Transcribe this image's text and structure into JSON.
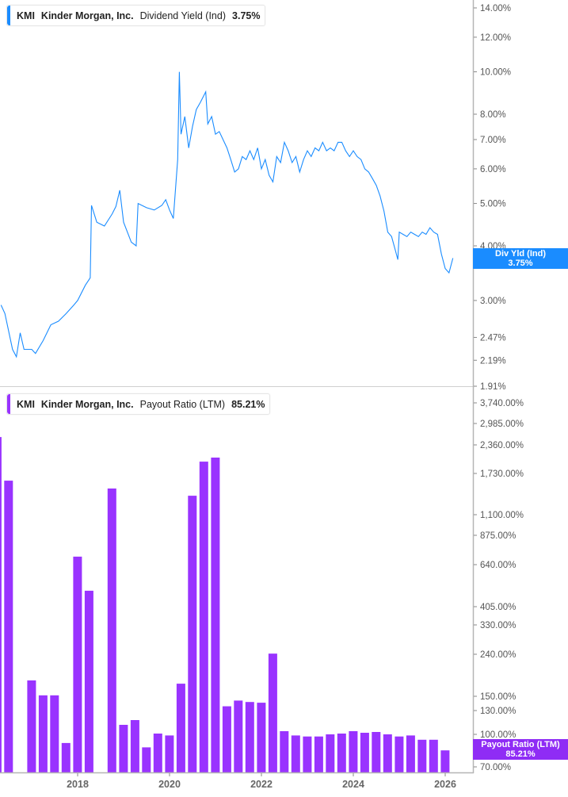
{
  "top_legend": {
    "ticker": "KMI",
    "company": "Kinder Morgan, Inc.",
    "metric": "Dividend Yield (Ind)",
    "value": "3.75%"
  },
  "bottom_legend": {
    "ticker": "KMI",
    "company": "Kinder Morgan, Inc.",
    "metric": "Payout Ratio (LTM)",
    "value": "85.21%"
  },
  "top_callout": {
    "label": "Div Yld (Ind)",
    "value": "3.75%"
  },
  "bottom_callout": {
    "label": "Payout Ratio (LTM)",
    "value": "85.21%"
  },
  "colors": {
    "yield_line": "#1a8cff",
    "payout_bars": "#9933ff",
    "payout_callout": "#8f2cf5"
  },
  "chart_data": [
    {
      "type": "line",
      "series": [
        {
          "name": "Dividend Yield (Ind)",
          "points": [
            [
              "2016-05",
              2.93
            ],
            [
              "2016-06",
              2.8
            ],
            [
              "2016-08",
              2.32
            ],
            [
              "2016-09",
              2.23
            ],
            [
              "2016-10",
              2.53
            ],
            [
              "2016-11",
              2.32
            ],
            [
              "2017-01",
              2.32
            ],
            [
              "2017-02",
              2.27
            ],
            [
              "2017-04",
              2.43
            ],
            [
              "2017-06",
              2.64
            ],
            [
              "2017-08",
              2.69
            ],
            [
              "2017-10",
              2.8
            ],
            [
              "2017-12",
              2.93
            ],
            [
              "2018-01",
              3.0
            ],
            [
              "2018-03",
              3.25
            ],
            [
              "2018-04-10",
              3.38
            ],
            [
              "2018-04-20",
              4.95
            ],
            [
              "2018-06",
              4.53
            ],
            [
              "2018-08",
              4.44
            ],
            [
              "2018-10",
              4.73
            ],
            [
              "2018-11",
              4.92
            ],
            [
              "2018-12",
              5.36
            ],
            [
              "2019-01",
              4.53
            ],
            [
              "2019-03",
              4.08
            ],
            [
              "2019-04-10",
              4.0
            ],
            [
              "2019-04-25",
              5.0
            ],
            [
              "2019-07",
              4.89
            ],
            [
              "2019-09",
              4.83
            ],
            [
              "2019-11",
              4.95
            ],
            [
              "2019-12",
              5.1
            ],
            [
              "2020-01",
              4.83
            ],
            [
              "2020-02",
              4.62
            ],
            [
              "2020-03-05",
              6.3
            ],
            [
              "2020-03-18",
              10.0
            ],
            [
              "2020-04",
              7.2
            ],
            [
              "2020-05",
              7.9
            ],
            [
              "2020-06",
              6.7
            ],
            [
              "2020-07",
              7.5
            ],
            [
              "2020-08",
              8.2
            ],
            [
              "2020-09",
              8.5
            ],
            [
              "2020-10-15",
              9.0
            ],
            [
              "2020-11",
              7.6
            ],
            [
              "2020-12",
              7.9
            ],
            [
              "2021-01",
              7.2
            ],
            [
              "2021-02",
              7.3
            ],
            [
              "2021-04",
              6.7
            ],
            [
              "2021-05",
              6.3
            ],
            [
              "2021-06",
              5.9
            ],
            [
              "2021-07",
              6.0
            ],
            [
              "2021-08",
              6.4
            ],
            [
              "2021-09",
              6.3
            ],
            [
              "2021-10",
              6.6
            ],
            [
              "2021-11",
              6.3
            ],
            [
              "2021-12",
              6.7
            ],
            [
              "2022-01",
              6.0
            ],
            [
              "2022-02",
              6.3
            ],
            [
              "2022-03",
              5.8
            ],
            [
              "2022-04",
              5.6
            ],
            [
              "2022-05",
              6.4
            ],
            [
              "2022-06",
              6.2
            ],
            [
              "2022-07",
              6.9
            ],
            [
              "2022-08",
              6.6
            ],
            [
              "2022-09",
              6.2
            ],
            [
              "2022-10",
              6.4
            ],
            [
              "2022-11",
              5.9
            ],
            [
              "2022-12",
              6.3
            ],
            [
              "2023-01",
              6.6
            ],
            [
              "2023-02",
              6.4
            ],
            [
              "2023-03",
              6.7
            ],
            [
              "2023-04",
              6.6
            ],
            [
              "2023-05",
              6.9
            ],
            [
              "2023-06",
              6.6
            ],
            [
              "2023-07",
              6.7
            ],
            [
              "2023-08",
              6.6
            ],
            [
              "2023-09",
              6.9
            ],
            [
              "2023-10",
              6.9
            ],
            [
              "2023-11",
              6.6
            ],
            [
              "2023-12",
              6.4
            ],
            [
              "2024-01",
              6.6
            ],
            [
              "2024-02",
              6.4
            ],
            [
              "2024-03",
              6.3
            ],
            [
              "2024-04",
              6.0
            ],
            [
              "2024-05",
              5.9
            ],
            [
              "2024-06",
              5.7
            ],
            [
              "2024-07",
              5.5
            ],
            [
              "2024-08",
              5.2
            ],
            [
              "2024-09",
              4.8
            ],
            [
              "2024-10",
              4.3
            ],
            [
              "2024-11",
              4.2
            ],
            [
              "2024-12",
              3.9
            ],
            [
              "2024-12-20",
              3.72
            ],
            [
              "2025-01",
              4.3
            ],
            [
              "2025-02",
              4.25
            ],
            [
              "2025-03",
              4.2
            ],
            [
              "2025-04",
              4.3
            ],
            [
              "2025-05",
              4.25
            ],
            [
              "2025-06",
              4.2
            ],
            [
              "2025-07",
              4.3
            ],
            [
              "2025-08",
              4.25
            ],
            [
              "2025-09",
              4.4
            ],
            [
              "2025-10",
              4.3
            ],
            [
              "2025-11",
              4.25
            ],
            [
              "2025-12",
              3.83
            ],
            [
              "2026-01",
              3.55
            ],
            [
              "2026-02",
              3.47
            ],
            [
              "2026-03",
              3.75
            ]
          ]
        }
      ],
      "y_scale": "log",
      "y_ticks": [
        "14.00%",
        "12.00%",
        "10.00%",
        "8.00%",
        "7.00%",
        "6.00%",
        "5.00%",
        "4.00%",
        "3.00%",
        "2.47%",
        "2.19%",
        "1.91%"
      ],
      "y_tick_values": [
        14,
        12,
        10,
        8,
        7,
        6,
        5,
        4,
        3,
        2.47,
        2.19,
        1.91
      ],
      "axis_position": "right"
    },
    {
      "type": "bar",
      "series": [
        {
          "name": "Payout Ratio (LTM)",
          "points": [
            [
              "2016-03-31",
              2590
            ],
            [
              "2016-06-30",
              1620
            ],
            [
              "2016-09-30",
              null
            ],
            [
              "2016-12-31",
              184
            ],
            [
              "2017-03-31",
              152
            ],
            [
              "2017-06-30",
              152
            ],
            [
              "2017-09-30",
              92
            ],
            [
              "2017-12-31",
              704
            ],
            [
              "2018-03-31",
              494
            ],
            [
              "2018-06-30",
              null
            ],
            [
              "2018-09-30",
              1500
            ],
            [
              "2018-12-31",
              112
            ],
            [
              "2019-03-31",
              118
            ],
            [
              "2019-06-30",
              88
            ],
            [
              "2019-09-30",
              101
            ],
            [
              "2019-12-31",
              99
            ],
            [
              "2020-03-31",
              177
            ],
            [
              "2020-06-30",
              1390
            ],
            [
              "2020-09-30",
              1990
            ],
            [
              "2020-12-31",
              2080
            ],
            [
              "2021-03-31",
              136
            ],
            [
              "2021-06-30",
              144
            ],
            [
              "2021-09-30",
              142
            ],
            [
              "2021-12-31",
              141
            ],
            [
              "2022-03-31",
              242
            ],
            [
              "2022-06-30",
              104
            ],
            [
              "2022-09-30",
              99
            ],
            [
              "2022-12-31",
              98
            ],
            [
              "2023-03-31",
              98
            ],
            [
              "2023-06-30",
              100
            ],
            [
              "2023-09-30",
              101
            ],
            [
              "2023-12-31",
              104
            ],
            [
              "2024-03-31",
              102
            ],
            [
              "2024-06-30",
              103
            ],
            [
              "2024-09-30",
              100
            ],
            [
              "2024-12-31",
              98
            ],
            [
              "2025-03-31",
              99
            ],
            [
              "2025-06-30",
              95
            ],
            [
              "2025-09-30",
              95
            ],
            [
              "2025-12-31",
              85.21
            ]
          ]
        }
      ],
      "y_ticks": [
        "3,740.00%",
        "2,985.00%",
        "2,360.00%",
        "1,730.00%",
        "1,100.00%",
        "875.00%",
        "640.00%",
        "405.00%",
        "330.00%",
        "240.00%",
        "150.00%",
        "130.00%",
        "100.00%",
        "70.00%"
      ],
      "y_tick_values": [
        3740,
        2985,
        2360,
        1730,
        1100,
        875,
        640,
        405,
        330,
        240,
        150,
        130,
        100,
        70
      ],
      "axis_position": "right"
    }
  ],
  "x_axis": {
    "ticks": [
      "2018",
      "2020",
      "2022",
      "2024",
      "2026"
    ],
    "tick_values": [
      2018,
      2020,
      2022,
      2024,
      2026
    ]
  }
}
